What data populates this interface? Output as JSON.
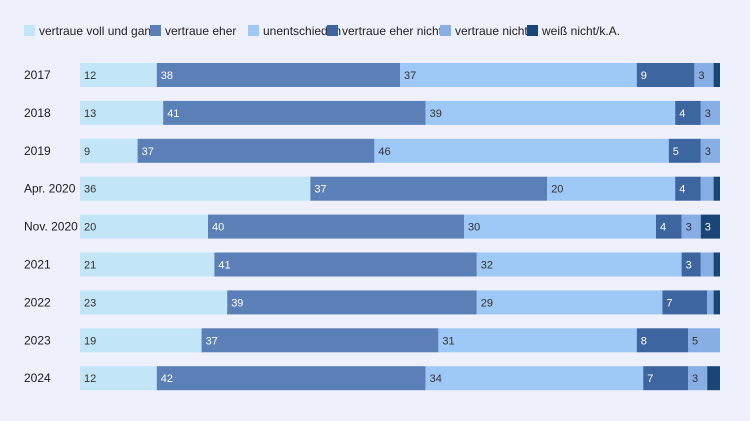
{
  "chart_data": {
    "type": "bar",
    "orientation": "horizontal",
    "stacked": true,
    "title": "",
    "xlabel": "",
    "ylabel": "",
    "xlim": [
      0,
      100
    ],
    "grid": false,
    "legend_position": "top-left",
    "categories": [
      "2017",
      "2018",
      "2019",
      "Apr. 2020",
      "Nov. 2020",
      "2021",
      "2022",
      "2023",
      "2024"
    ],
    "series": [
      {
        "name": "vertraue voll und ganz",
        "color": "#c2e6f8",
        "values": [
          12,
          13,
          9,
          36,
          20,
          21,
          23,
          19,
          12
        ]
      },
      {
        "name": "vertraue eher",
        "color": "#5b80b7",
        "values": [
          38,
          41,
          37,
          37,
          40,
          41,
          39,
          37,
          42
        ]
      },
      {
        "name": "unentschieden",
        "color": "#9ec8f5",
        "values": [
          37,
          39,
          46,
          20,
          30,
          32,
          29,
          31,
          34
        ]
      },
      {
        "name": "vertraue eher nicht",
        "color": "#3d65a0",
        "values": [
          9,
          4,
          5,
          4,
          4,
          3,
          7,
          8,
          7
        ]
      },
      {
        "name": "vertraue nicht",
        "color": "#87aee5",
        "values": [
          3,
          3,
          3,
          2,
          3,
          2,
          1,
          5,
          3
        ]
      },
      {
        "name": "weiß nicht/k.A.",
        "color": "#1a4677",
        "values": [
          1,
          0,
          0,
          1,
          3,
          1,
          1,
          0,
          2
        ]
      }
    ],
    "data_labels": [
      [
        "12",
        "38",
        "37",
        "9",
        "3",
        ""
      ],
      [
        "13",
        "41",
        "39",
        "4",
        "3",
        ""
      ],
      [
        "9",
        "37",
        "46",
        "5",
        "3",
        ""
      ],
      [
        "36",
        "37",
        "20",
        "4",
        "",
        ""
      ],
      [
        "20",
        "40",
        "30",
        "4",
        "3",
        "3"
      ],
      [
        "21",
        "41",
        "32",
        "3",
        "",
        ""
      ],
      [
        "23",
        "39",
        "29",
        "7",
        "",
        ""
      ],
      [
        "19",
        "37",
        "31",
        "8",
        "5",
        ""
      ],
      [
        "12",
        "42",
        "34",
        "7",
        "3",
        ""
      ]
    ],
    "label_colors": [
      "#333333",
      "#ffffff",
      "#333333",
      "#ffffff",
      "#333333",
      "#ffffff"
    ]
  }
}
